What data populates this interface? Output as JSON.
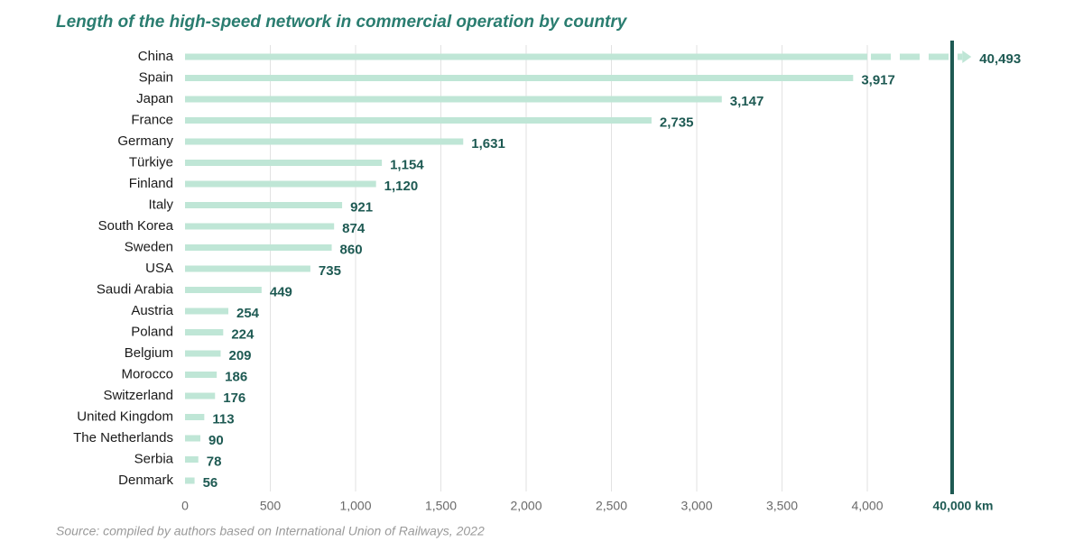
{
  "chart_data": {
    "type": "bar",
    "orientation": "horizontal",
    "title": "Length of the high-speed network in commercial operation by country",
    "source": "Source: compiled by authors based on International Union of Railways, 2022",
    "categories": [
      "China",
      "Spain",
      "Japan",
      "France",
      "Germany",
      "Türkiye",
      "Finland",
      "Italy",
      "South Korea",
      "Sweden",
      "USA",
      "Saudi Arabia",
      "Austria",
      "Poland",
      "Belgium",
      "Morocco",
      "Switzerland",
      "United Kingdom",
      "The Netherlands",
      "Serbia",
      "Denmark"
    ],
    "values": [
      40493,
      3917,
      3147,
      2735,
      1631,
      1154,
      1120,
      921,
      874,
      860,
      735,
      449,
      254,
      224,
      209,
      186,
      176,
      113,
      90,
      78,
      56
    ],
    "value_labels": [
      "40,493",
      "3,917",
      "3,147",
      "2,735",
      "1,631",
      "1,154",
      "1,120",
      "921",
      "874",
      "860",
      "735",
      "449",
      "254",
      "224",
      "209",
      "186",
      "176",
      "113",
      "90",
      "78",
      "56"
    ],
    "color": "#bfe6d6",
    "xlim": [
      0,
      40000
    ],
    "axis_break": 4000,
    "xticks": [
      0,
      500,
      {
        "value": 1000,
        "label": "1,000"
      },
      {
        "value": 1500,
        "label": "1,500"
      },
      {
        "value": 2000,
        "label": "2,000"
      },
      {
        "value": 2500,
        "label": "2,500"
      },
      {
        "value": 3000,
        "label": "3,000"
      },
      {
        "value": 3500,
        "label": "3,500"
      },
      {
        "value": 4000,
        "label": "4,000"
      },
      {
        "value": 40000,
        "label": "40,000 km"
      }
    ],
    "grid": true
  }
}
